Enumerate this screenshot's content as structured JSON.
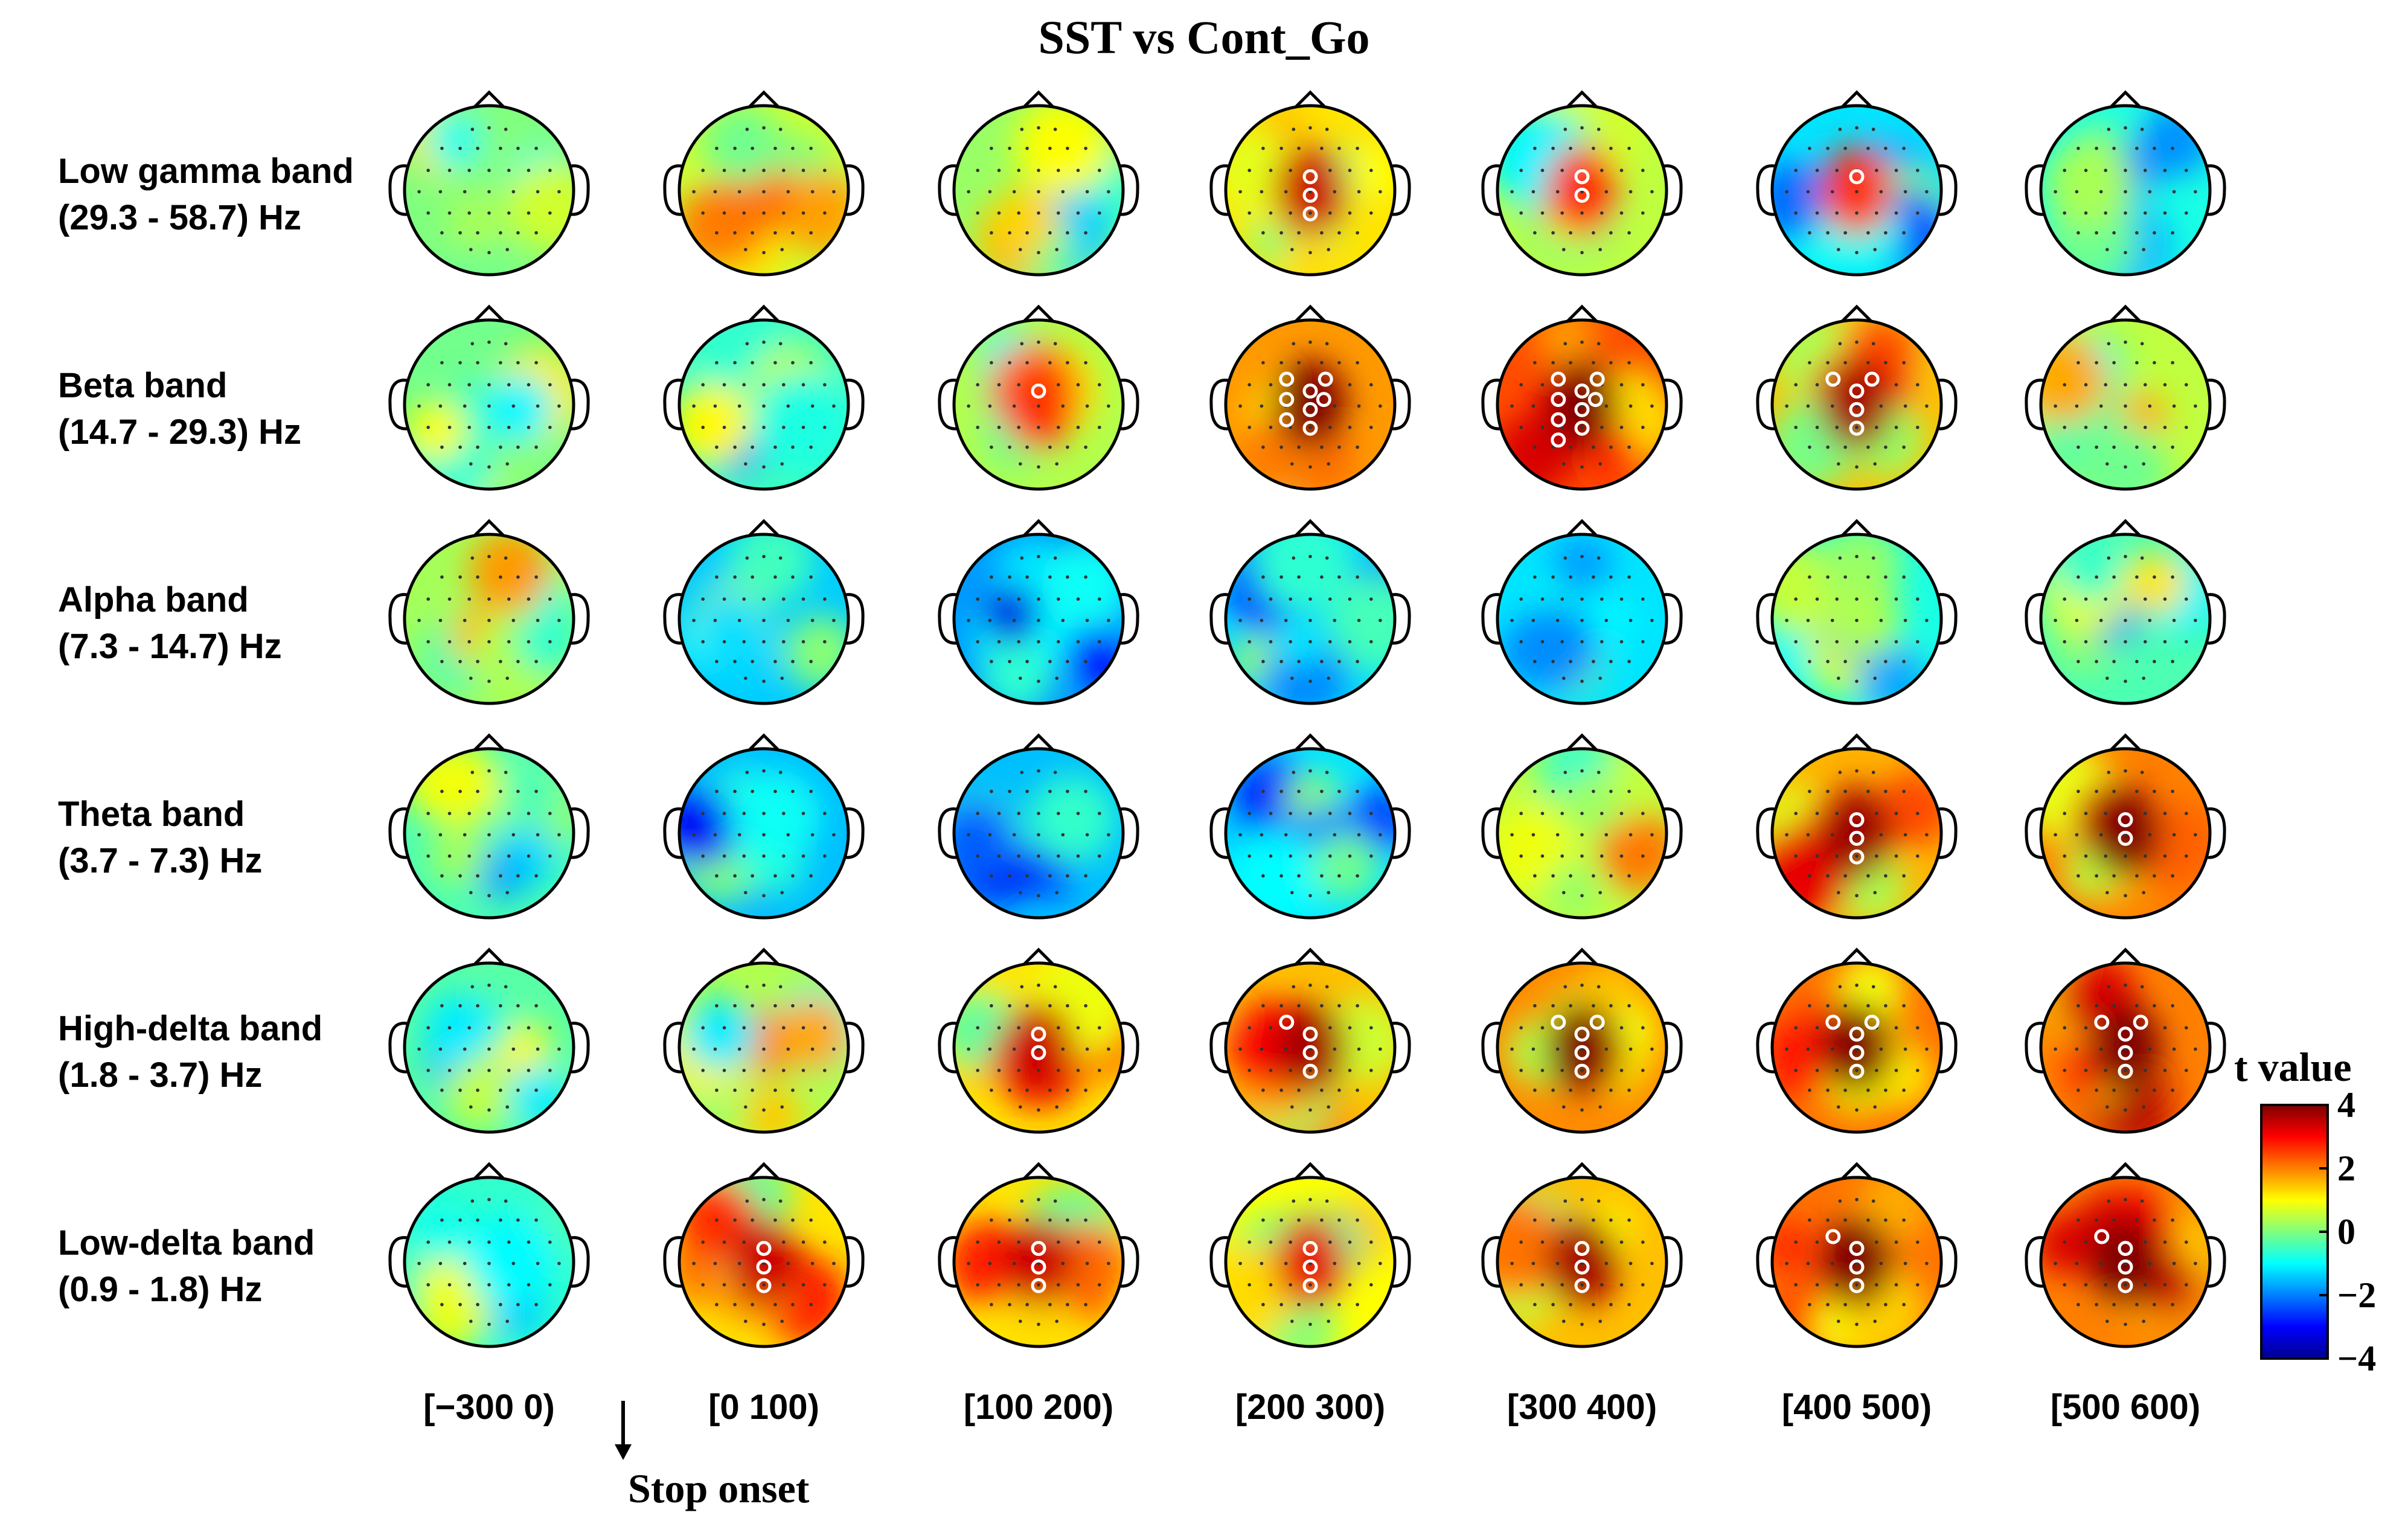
{
  "chart_data": {
    "type": "heatmap",
    "subtype": "scalp-topography-grid",
    "title": "SST vs Cont_Go",
    "bands": [
      {
        "name": "Low gamma band",
        "range": "(29.3 - 58.7) Hz"
      },
      {
        "name": "Beta band",
        "range": "(14.7 - 29.3) Hz"
      },
      {
        "name": "Alpha band",
        "range": "(7.3 - 14.7) Hz"
      },
      {
        "name": "Theta band",
        "range": "(3.7 - 7.3) Hz"
      },
      {
        "name": "High-delta band",
        "range": "(1.8 - 3.7) Hz"
      },
      {
        "name": "Low-delta band",
        "range": "(0.9 - 1.8) Hz"
      }
    ],
    "time_windows": [
      "[−300 0)",
      "[0 100)",
      "[100 200)",
      "[200 300)",
      "[300 400)",
      "[400 500)",
      "[500 600)"
    ],
    "annotation": "Stop onset",
    "colorbar": {
      "label": "t value",
      "min": -4,
      "max": 4,
      "ticks": [
        "4",
        "2",
        "0",
        "−2",
        "−4"
      ],
      "colormap": "jet"
    },
    "mean_t_values": [
      [
        0.0,
        0.6,
        0.2,
        1.2,
        0.5,
        -1.2,
        -0.8
      ],
      [
        -0.1,
        -0.5,
        0.4,
        1.8,
        2.4,
        1.5,
        0.5
      ],
      [
        0.3,
        -1.4,
        -1.8,
        -1.3,
        -1.2,
        -0.8,
        -0.4
      ],
      [
        -0.4,
        -1.5,
        -1.5,
        -1.2,
        0.5,
        1.6,
        2.0
      ],
      [
        -0.3,
        0.4,
        1.2,
        1.5,
        1.9,
        2.1,
        2.0
      ],
      [
        -0.6,
        1.2,
        1.2,
        1.0,
        1.5,
        2.1,
        2.0
      ]
    ],
    "significant_electrodes": [
      [
        0,
        0,
        0,
        3,
        2,
        1,
        0
      ],
      [
        0,
        0,
        1,
        8,
        9,
        5,
        0
      ],
      [
        0,
        0,
        0,
        0,
        0,
        0,
        0
      ],
      [
        0,
        0,
        0,
        0,
        0,
        3,
        2
      ],
      [
        0,
        0,
        2,
        4,
        5,
        5,
        5
      ],
      [
        0,
        3,
        3,
        3,
        3,
        4,
        4
      ]
    ]
  }
}
